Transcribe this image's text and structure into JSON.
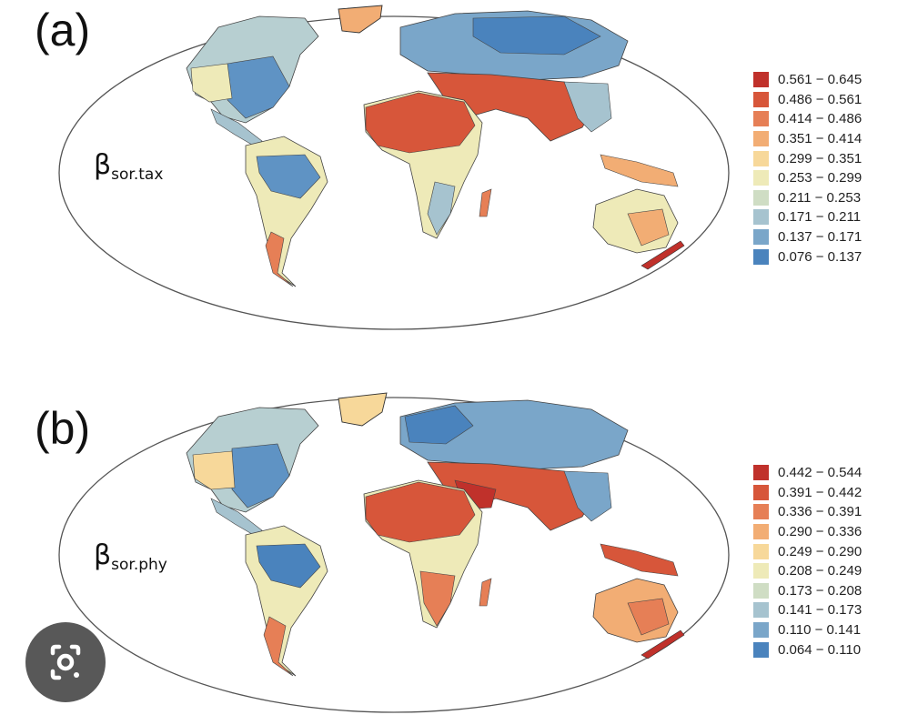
{
  "panels": [
    {
      "letter": "(a)",
      "symbol": "β",
      "subscript": "sor.tax",
      "legend": [
        {
          "label": "0.561 − 0.645",
          "color": "#c0312b"
        },
        {
          "label": "0.486 − 0.561",
          "color": "#d7563a"
        },
        {
          "label": "0.414 − 0.486",
          "color": "#e67f56"
        },
        {
          "label": "0.351 − 0.414",
          "color": "#f2ad74"
        },
        {
          "label": "0.299 − 0.351",
          "color": "#f7d89a"
        },
        {
          "label": "0.253 − 0.299",
          "color": "#eeeab8"
        },
        {
          "label": "0.211 − 0.253",
          "color": "#cfddc4"
        },
        {
          "label": "0.171 − 0.211",
          "color": "#a6c3cf"
        },
        {
          "label": "0.137 − 0.171",
          "color": "#7aa6c9"
        },
        {
          "label": "0.076 − 0.137",
          "color": "#4a83bd"
        }
      ]
    },
    {
      "letter": "(b)",
      "symbol": "β",
      "subscript": "sor.phy",
      "legend": [
        {
          "label": "0.442 − 0.544",
          "color": "#c0312b"
        },
        {
          "label": "0.391 − 0.442",
          "color": "#d7563a"
        },
        {
          "label": "0.336 − 0.391",
          "color": "#e67f56"
        },
        {
          "label": "0.290 − 0.336",
          "color": "#f2ad74"
        },
        {
          "label": "0.249 − 0.290",
          "color": "#f7d89a"
        },
        {
          "label": "0.208 − 0.249",
          "color": "#eeeab8"
        },
        {
          "label": "0.173 − 0.208",
          "color": "#cfddc4"
        },
        {
          "label": "0.141 − 0.173",
          "color": "#a6c3cf"
        },
        {
          "label": "0.110 − 0.141",
          "color": "#7aa6c9"
        },
        {
          "label": "0.064 − 0.110",
          "color": "#4a83bd"
        }
      ]
    }
  ],
  "overlay": {
    "icon": "camera-lens-icon"
  }
}
